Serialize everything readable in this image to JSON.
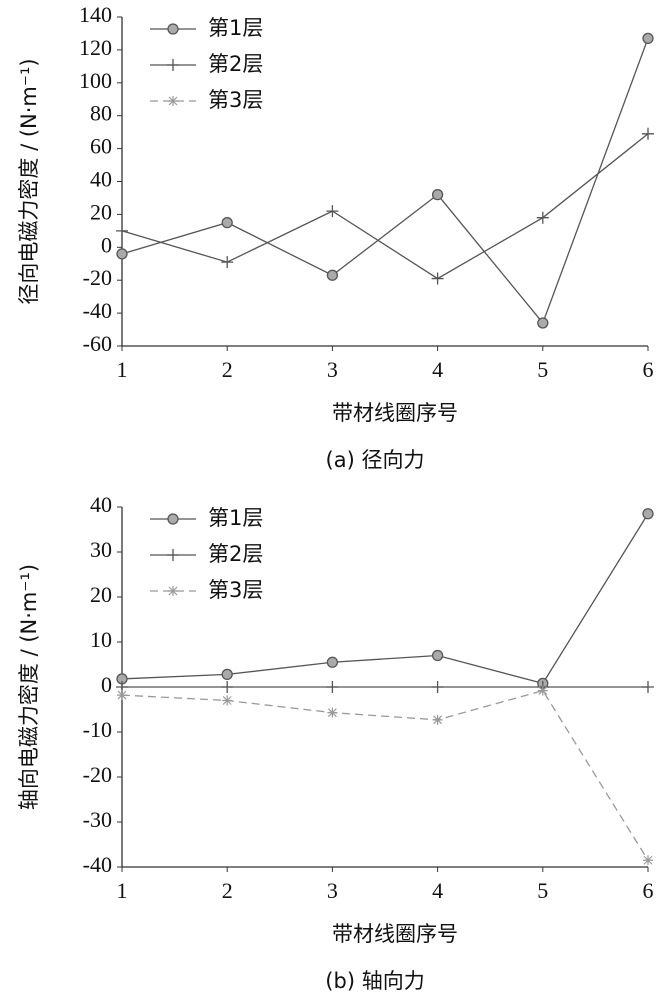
{
  "chart_data": [
    {
      "type": "line",
      "caption": "(a)  径向力",
      "xlabel": "带材线圈序号",
      "ylabel": "径向电磁力密度 / (N·m⁻¹)",
      "x": [
        1,
        2,
        3,
        4,
        5,
        6
      ],
      "xlim": [
        1,
        6
      ],
      "xticks": [
        1,
        2,
        3,
        4,
        5,
        6
      ],
      "ylim": [
        -60,
        140
      ],
      "yticks": [
        -60,
        -40,
        -20,
        0,
        20,
        40,
        60,
        80,
        100,
        120,
        140
      ],
      "legend": "upper left",
      "series": [
        {
          "name": "第1层",
          "color": "#555555",
          "marker": "circle",
          "dashed": false,
          "values": [
            -4,
            15,
            -17,
            32,
            -46,
            127
          ]
        },
        {
          "name": "第2层",
          "color": "#555555",
          "marker": "plus",
          "dashed": false,
          "values": [
            10,
            -9,
            22,
            -19,
            18,
            69
          ]
        },
        {
          "name": "第3层",
          "color": "#999999",
          "marker": "star",
          "dashed": true,
          "values": [
            null,
            null,
            null,
            null,
            null,
            null
          ]
        }
      ]
    },
    {
      "type": "line",
      "caption": "(b)  轴向力",
      "xlabel": "带材线圈序号",
      "ylabel": "轴向电磁力密度 / (N·m⁻¹)",
      "x": [
        1,
        2,
        3,
        4,
        5,
        6
      ],
      "xlim": [
        1,
        6
      ],
      "xticks": [
        1,
        2,
        3,
        4,
        5,
        6
      ],
      "ylim": [
        -40,
        40
      ],
      "yticks": [
        -40,
        -30,
        -20,
        -10,
        0,
        10,
        20,
        30,
        40
      ],
      "legend": "upper left",
      "series": [
        {
          "name": "第1层",
          "color": "#555555",
          "marker": "circle",
          "dashed": false,
          "values": [
            1.8,
            2.8,
            5.5,
            7.0,
            0.8,
            38.5
          ]
        },
        {
          "name": "第2层",
          "color": "#555555",
          "marker": "plus",
          "dashed": false,
          "values": [
            0,
            0,
            0,
            0,
            0,
            0
          ]
        },
        {
          "name": "第3层",
          "color": "#999999",
          "marker": "star",
          "dashed": true,
          "values": [
            -1.8,
            -3.0,
            -5.7,
            -7.3,
            -0.8,
            -38.5
          ]
        }
      ]
    }
  ]
}
